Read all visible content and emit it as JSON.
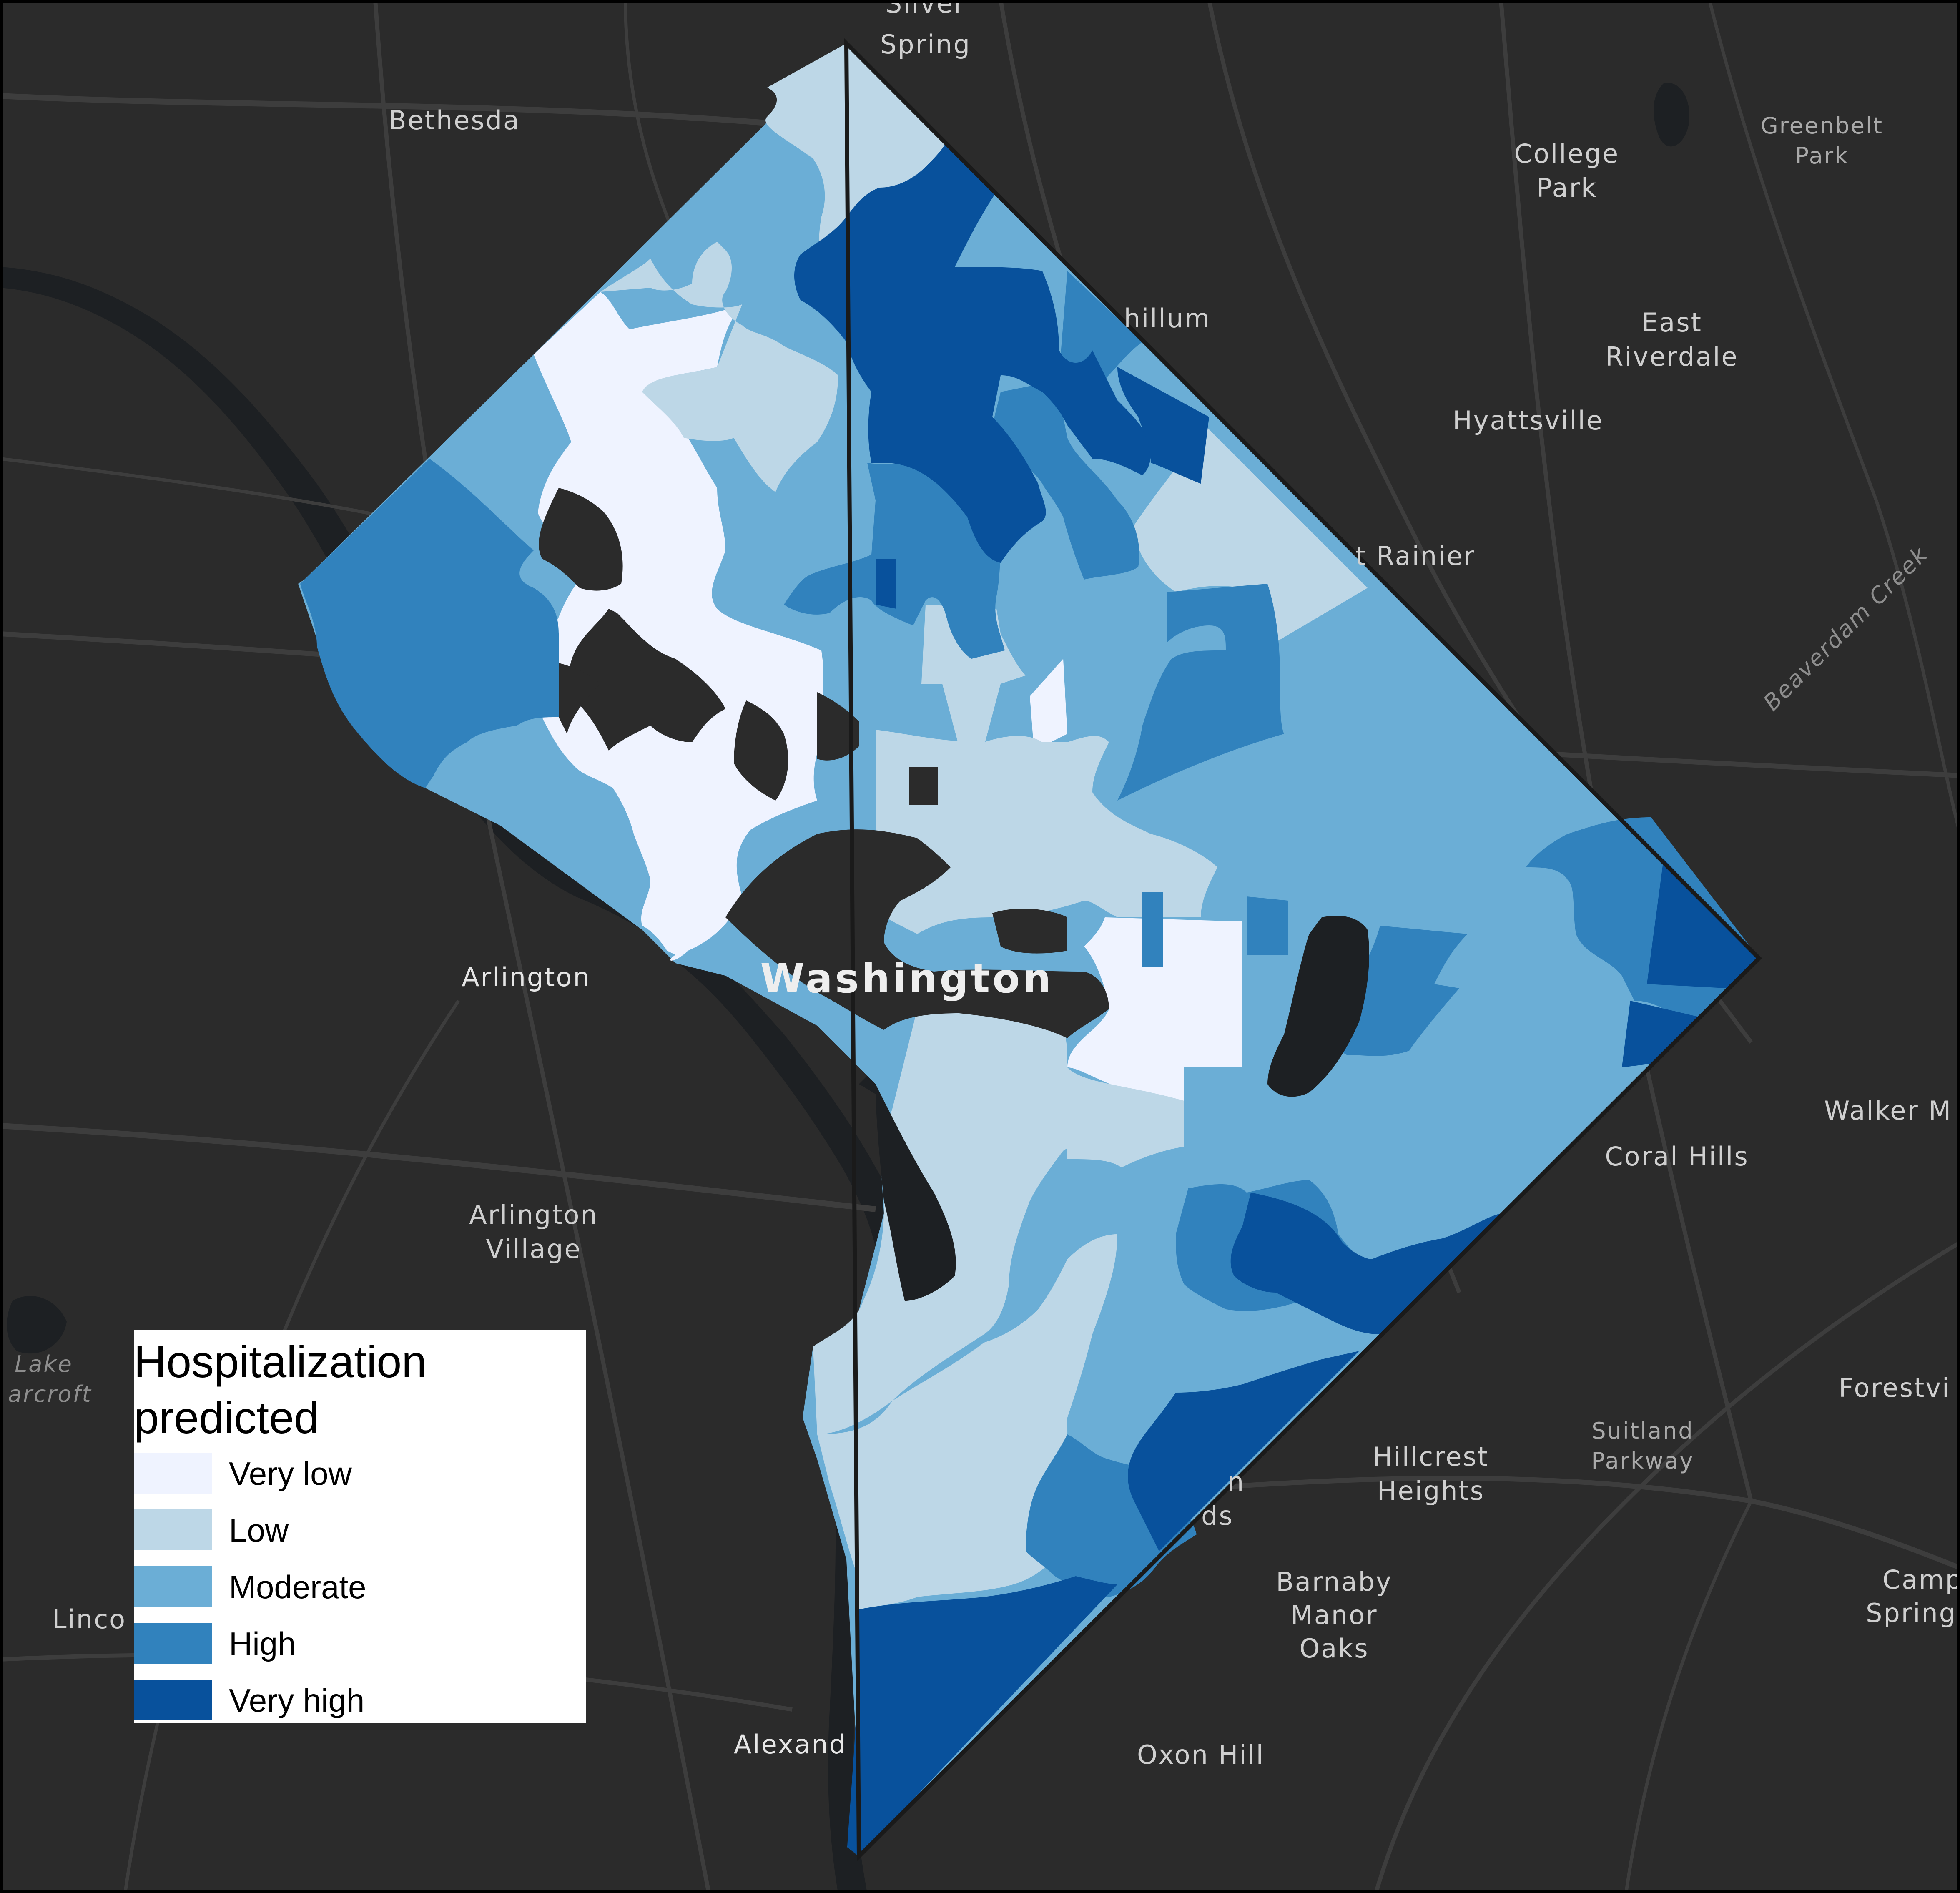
{
  "legend": {
    "title": "Hospitalization predicted",
    "classes": [
      {
        "label": "Very low",
        "color": "#eff3ff"
      },
      {
        "label": "Low",
        "color": "#bdd7e7"
      },
      {
        "label": "Moderate",
        "color": "#6baed6"
      },
      {
        "label": "High",
        "color": "#3182bd"
      },
      {
        "label": "Very high",
        "color": "#08519c"
      }
    ]
  },
  "places": {
    "silver_spring": [
      "Silver",
      "Spring"
    ],
    "bethesda": "Bethesda",
    "college_park": [
      "College",
      "Park"
    ],
    "greenbelt_park": [
      "Greenbelt",
      "Park"
    ],
    "east_riverdale": [
      "East",
      "Riverdale"
    ],
    "hyattsville": "Hyattsville",
    "chillum": "hillum",
    "mt_rainier": "t Rainier",
    "beaverdam_creek": "Beaverdam Creek",
    "arlington": "Arlington",
    "washington": "Washington",
    "walker_mill": "Walker M",
    "coral_hills": "Coral Hills",
    "arlington_village": [
      "Arlington",
      "Village"
    ],
    "lake_barcroft": [
      "Lake",
      "arcroft"
    ],
    "forestville": "Forestvi",
    "suitland_parkway": [
      "Suitland",
      "Parkway"
    ],
    "hillcrest_heights": [
      "Hillcrest",
      "Heights"
    ],
    "congress_heights_partial": [
      "n",
      "ds"
    ],
    "lincolnia": "Linco",
    "barnaby_manor_oaks": [
      "Barnaby",
      "Manor",
      "Oaks"
    ],
    "camp_springs": [
      "Camp",
      "Spring"
    ],
    "alexandria": "Alexand",
    "oxon_hill": "Oxon Hill"
  },
  "map_style": {
    "basemap": "dark gray canvas",
    "basemap_color": "#2b2b2b",
    "water_color": "#1d2023",
    "road_color": "#3d3d3d"
  }
}
